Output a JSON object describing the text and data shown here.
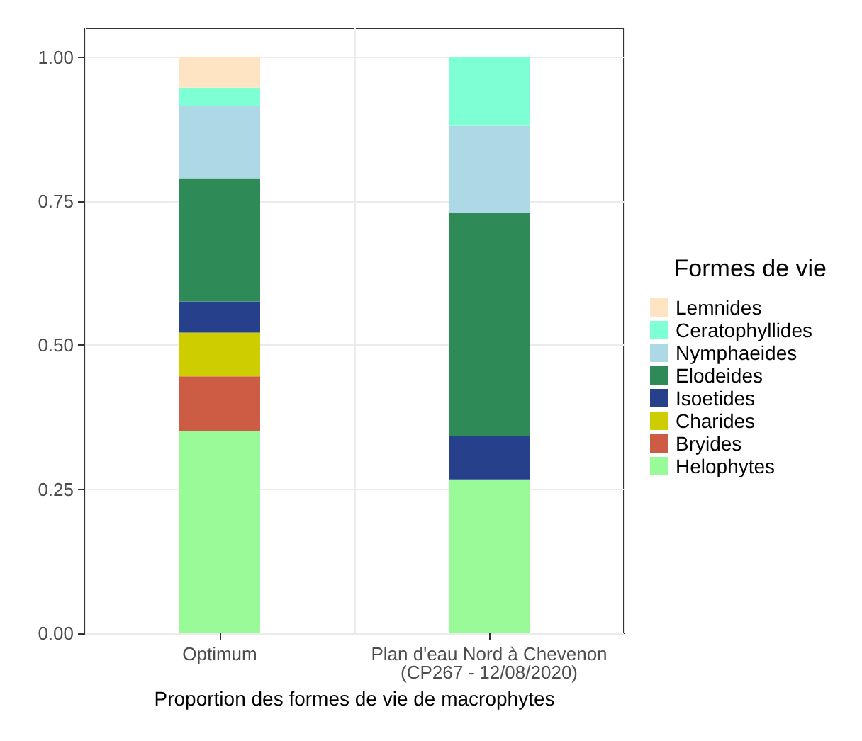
{
  "chart_data": {
    "type": "bar",
    "stacked": true,
    "xlabel": "Proportion des formes de vie de macrophytes",
    "legend_title": "Formes de vie",
    "legend": "right",
    "grid": true,
    "categories": [
      "Optimum",
      "Plan d'eau Nord à Chevenon\n(CP267 - 12/08/2020)"
    ],
    "ylim": [
      0,
      1.05
    ],
    "yticks": [
      {
        "value": 0,
        "label": "0.00"
      },
      {
        "value": 0.25,
        "label": "0.25"
      },
      {
        "value": 0.5,
        "label": "0.50"
      },
      {
        "value": 0.75,
        "label": "0.75"
      },
      {
        "value": 1,
        "label": "1.00"
      }
    ],
    "series": [
      {
        "name": "Helophytes",
        "color": "#98fb98",
        "values": [
          0.351,
          0.267
        ]
      },
      {
        "name": "Bryides",
        "color": "#cd5c45",
        "values": [
          0.095,
          null
        ]
      },
      {
        "name": "Charides",
        "color": "#cdcd00",
        "values": [
          0.076,
          null
        ]
      },
      {
        "name": "Isoetides",
        "color": "#27408b",
        "values": [
          0.054,
          0.075
        ]
      },
      {
        "name": "Elodeides",
        "color": "#2e8b57",
        "values": [
          0.214,
          0.387
        ]
      },
      {
        "name": "Nymphaeides",
        "color": "#add8e6",
        "values": [
          0.126,
          0.152
        ]
      },
      {
        "name": "Ceratophyllides",
        "color": "#7fffd4",
        "values": [
          0.031,
          0.119
        ]
      },
      {
        "name": "Lemnides",
        "color": "#ffe4c4",
        "values": [
          0.053,
          null
        ]
      }
    ]
  }
}
